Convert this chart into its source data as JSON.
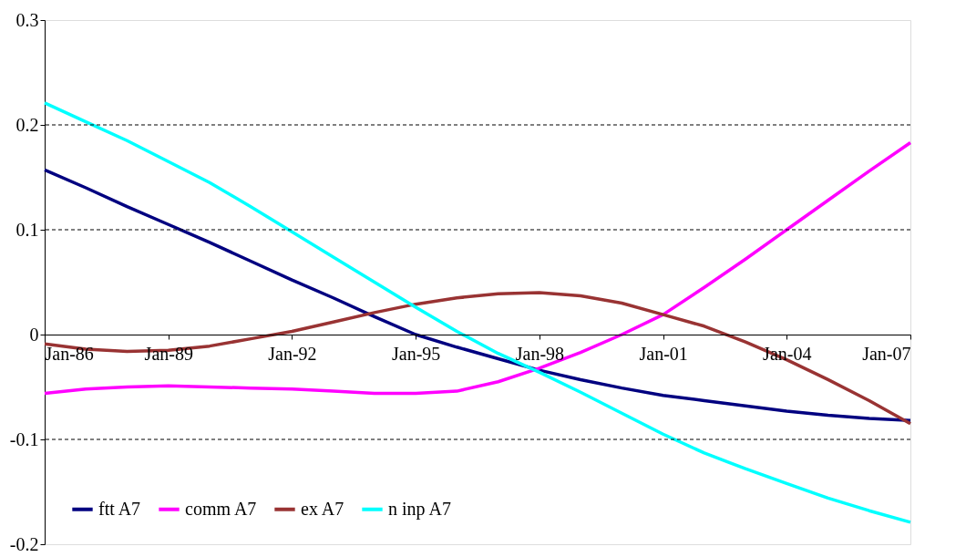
{
  "chart_data": {
    "type": "line",
    "x": [
      "1986-01",
      "1987-01",
      "1988-01",
      "1989-01",
      "1990-01",
      "1991-01",
      "1992-01",
      "1993-01",
      "1994-01",
      "1995-01",
      "1996-01",
      "1997-01",
      "1998-01",
      "1999-01",
      "2000-01",
      "2001-01",
      "2002-01",
      "2003-01",
      "2004-01",
      "2005-01",
      "2006-01",
      "2007-01"
    ],
    "series": [
      {
        "name": "ftt A7",
        "color": "#000080",
        "values": [
          0.157,
          0.14,
          0.122,
          0.105,
          0.088,
          0.07,
          0.052,
          0.035,
          0.017,
          0.0,
          -0.012,
          -0.023,
          -0.034,
          -0.043,
          -0.051,
          -0.058,
          -0.063,
          -0.068,
          -0.073,
          -0.077,
          -0.08,
          -0.082
        ]
      },
      {
        "name": "comm A7",
        "color": "#ff00ff",
        "values": [
          -0.056,
          -0.052,
          -0.05,
          -0.049,
          -0.05,
          -0.051,
          -0.052,
          -0.054,
          -0.056,
          -0.056,
          -0.054,
          -0.045,
          -0.032,
          -0.017,
          0.0,
          0.019,
          0.045,
          0.072,
          0.1,
          0.128,
          0.156,
          0.183
        ]
      },
      {
        "name": "ex A7",
        "color": "#993333",
        "values": [
          -0.009,
          -0.014,
          -0.016,
          -0.015,
          -0.011,
          -0.004,
          0.003,
          0.012,
          0.021,
          0.029,
          0.035,
          0.039,
          0.04,
          0.037,
          0.03,
          0.019,
          0.008,
          -0.007,
          -0.024,
          -0.043,
          -0.063,
          -0.085
        ]
      },
      {
        "name": "n inp A7",
        "color": "#00ffff",
        "values": [
          0.221,
          0.203,
          0.185,
          0.165,
          0.145,
          0.122,
          0.098,
          0.074,
          0.05,
          0.026,
          0.003,
          -0.018,
          -0.036,
          -0.055,
          -0.075,
          -0.095,
          -0.113,
          -0.128,
          -0.142,
          -0.156,
          -0.168,
          -0.179
        ]
      }
    ],
    "xlim": [
      "1986-01",
      "2007-01"
    ],
    "xticks": [
      {
        "value": "1986-01",
        "label": "Jan-86"
      },
      {
        "value": "1989-01",
        "label": "Jan-89"
      },
      {
        "value": "1992-01",
        "label": "Jan-92"
      },
      {
        "value": "1995-01",
        "label": "Jan-95"
      },
      {
        "value": "1998-01",
        "label": "Jan-98"
      },
      {
        "value": "2001-01",
        "label": "Jan-01"
      },
      {
        "value": "2004-01",
        "label": "Jan-04"
      },
      {
        "value": "2007-01",
        "label": "Jan-07"
      }
    ],
    "ylim": [
      -0.2,
      0.3
    ],
    "yticks": [
      {
        "value": -0.2,
        "label": "-0.2"
      },
      {
        "value": -0.1,
        "label": "-0.1"
      },
      0,
      0.1,
      0.2,
      0.3
    ],
    "grid": "y",
    "line_style": "solid",
    "marker": "none",
    "legend": "bottom left"
  }
}
